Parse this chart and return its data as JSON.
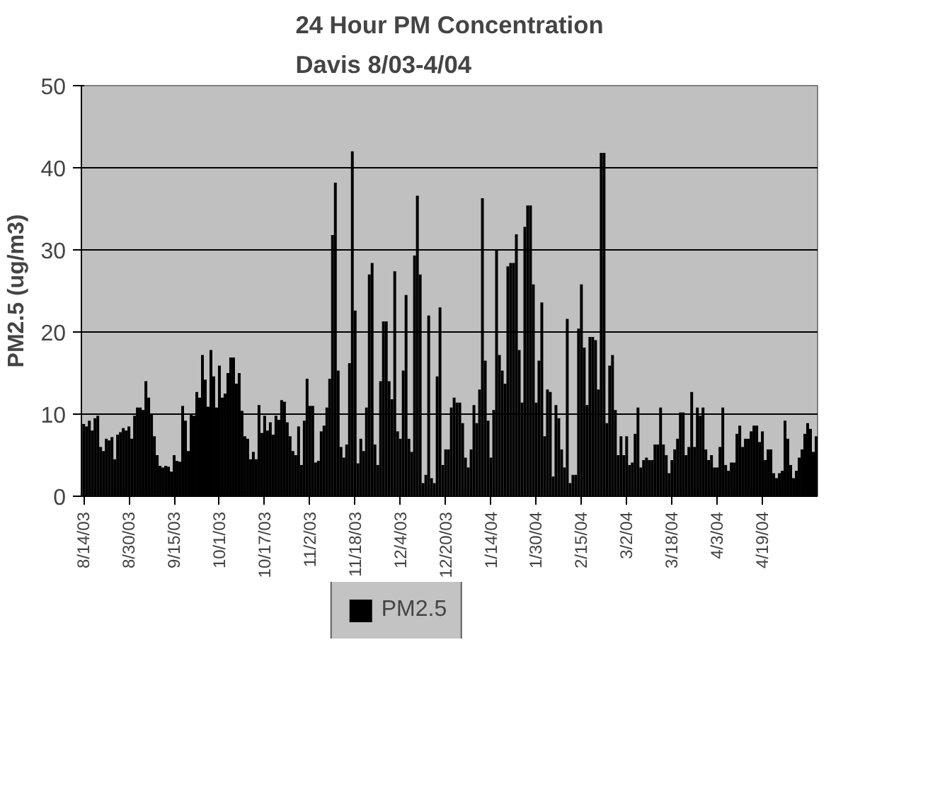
{
  "chart_data": {
    "type": "bar",
    "title": "24 Hour PM Concentration\nDavis 8/03-4/04",
    "ylabel": "PM2.5 (ug/m3)",
    "categories": [
      "8/14/03",
      null,
      null,
      null,
      null,
      null,
      null,
      null,
      null,
      null,
      null,
      null,
      null,
      null,
      null,
      null,
      "8/30/03",
      null,
      null,
      null,
      null,
      null,
      null,
      null,
      null,
      null,
      null,
      null,
      null,
      null,
      null,
      null,
      "9/15/03",
      null,
      null,
      null,
      null,
      null,
      null,
      null,
      null,
      null,
      null,
      null,
      null,
      null,
      null,
      null,
      "10/1/03",
      null,
      null,
      null,
      null,
      null,
      null,
      null,
      null,
      null,
      null,
      null,
      null,
      null,
      null,
      null,
      "10/17/03",
      null,
      null,
      null,
      null,
      null,
      null,
      null,
      null,
      null,
      null,
      null,
      null,
      null,
      null,
      null,
      "11/2/03",
      null,
      null,
      null,
      null,
      null,
      null,
      null,
      null,
      null,
      null,
      null,
      null,
      null,
      null,
      null,
      "11/18/03",
      null,
      null,
      null,
      null,
      null,
      null,
      null,
      null,
      null,
      null,
      null,
      null,
      null,
      null,
      null,
      "12/4/03",
      null,
      null,
      null,
      null,
      null,
      null,
      null,
      null,
      null,
      null,
      null,
      null,
      null,
      null,
      null,
      "12/20/03",
      null,
      null,
      null,
      null,
      null,
      null,
      null,
      null,
      null,
      null,
      null,
      null,
      null,
      null,
      null,
      "1/14/04",
      null,
      null,
      null,
      null,
      null,
      null,
      null,
      null,
      null,
      null,
      null,
      null,
      null,
      null,
      null,
      "1/30/04",
      null,
      null,
      null,
      null,
      null,
      null,
      null,
      null,
      null,
      null,
      null,
      null,
      null,
      null,
      null,
      "2/15/04",
      null,
      null,
      null,
      null,
      null,
      null,
      null,
      null,
      null,
      null,
      null,
      null,
      null,
      null,
      null,
      "3/2/04",
      null,
      null,
      null,
      null,
      null,
      null,
      null,
      null,
      null,
      null,
      null,
      null,
      null,
      null,
      null,
      "3/18/04",
      null,
      null,
      null,
      null,
      null,
      null,
      null,
      null,
      null,
      null,
      null,
      null,
      null,
      null,
      null,
      "4/3/04",
      null,
      null,
      null,
      null,
      null,
      null,
      null,
      null,
      null,
      null,
      null,
      null,
      null,
      null,
      null,
      "4/19/04",
      null,
      null,
      null,
      null,
      null,
      null,
      null,
      null,
      null,
      null,
      null,
      null,
      null,
      null,
      null,
      null,
      null,
      null,
      null
    ],
    "series": [
      {
        "name": "PM2.5",
        "color": "#000000",
        "values": [
          8.8,
          8.5,
          9.2,
          8.0,
          9.5,
          9.8,
          6.0,
          5.5,
          7.0,
          6.8,
          7.2,
          4.5,
          7.5,
          7.8,
          8.3,
          8.0,
          8.5,
          7.0,
          9.8,
          10.8,
          10.8,
          10.5,
          14.0,
          12.0,
          10.0,
          7.3,
          5.0,
          3.7,
          3.5,
          3.7,
          3.6,
          3.0,
          5.0,
          4.3,
          4.2,
          11.0,
          9.2,
          5.5,
          10.0,
          9.8,
          12.7,
          12.0,
          17.2,
          14.2,
          10.9,
          17.8,
          14.6,
          10.8,
          15.9,
          12.0,
          12.5,
          15.0,
          16.9,
          16.9,
          13.7,
          15.0,
          10.4,
          7.3,
          7.0,
          4.5,
          5.4,
          4.5,
          11.1,
          7.7,
          9.8,
          8.0,
          9.0,
          7.5,
          9.8,
          9.3,
          11.7,
          11.5,
          9.0,
          7.3,
          5.5,
          5.0,
          8.5,
          3.8,
          9.2,
          14.3,
          11.0,
          11.0,
          4.1,
          4.3,
          7.9,
          8.6,
          10.8,
          14.3,
          31.8,
          38.2,
          15.3,
          6.0,
          4.7,
          6.3,
          16.2,
          42.0,
          22.6,
          4.0,
          7.0,
          5.5,
          10.8,
          27.0,
          28.4,
          6.3,
          3.8,
          14.0,
          21.3,
          21.3,
          14.0,
          11.8,
          27.4,
          7.9,
          7.0,
          15.3,
          24.5,
          7.0,
          5.4,
          29.3,
          36.6,
          27.0,
          1.6,
          2.6,
          22.0,
          2.2,
          1.6,
          14.6,
          23.0,
          3.8,
          5.7,
          5.7,
          10.8,
          12.0,
          11.4,
          11.4,
          8.9,
          4.7,
          3.5,
          5.7,
          11.1,
          8.9,
          13.0,
          36.3,
          16.5,
          9.2,
          4.7,
          10.5,
          30.0,
          17.2,
          15.3,
          13.7,
          28.0,
          28.4,
          28.4,
          31.9,
          17.8,
          11.4,
          32.8,
          35.4,
          35.4,
          25.8,
          11.4,
          16.5,
          23.6,
          7.3,
          13.0,
          12.7,
          2.4,
          11.1,
          9.5,
          5.7,
          3.5,
          21.6,
          1.6,
          2.6,
          2.6,
          20.4,
          25.8,
          18.1,
          11.1,
          19.4,
          19.4,
          19.0,
          13.0,
          41.8,
          41.8,
          8.9,
          15.9,
          17.2,
          10.5,
          5.0,
          7.3,
          5.0,
          7.3,
          3.8,
          4.1,
          7.6,
          10.8,
          3.5,
          4.4,
          4.7,
          4.4,
          4.4,
          6.3,
          6.3,
          10.8,
          6.3,
          5.0,
          2.8,
          4.4,
          5.7,
          7.0,
          10.2,
          10.2,
          5.0,
          6.0,
          12.7,
          6.0,
          10.8,
          9.8,
          10.8,
          5.7,
          4.4,
          5.0,
          3.5,
          3.5,
          6.0,
          10.8,
          3.8,
          3.1,
          4.1,
          4.1,
          7.6,
          8.6,
          6.0,
          7.0,
          7.0,
          7.9,
          8.6,
          8.6,
          6.6,
          7.9,
          4.4,
          5.7,
          5.7,
          2.8,
          2.2,
          2.8,
          3.1,
          9.2,
          7.0,
          3.8,
          2.2,
          3.1,
          4.7,
          5.7,
          7.6,
          8.9,
          8.2,
          5.4,
          7.3
        ]
      }
    ],
    "ylim": [
      0,
      50
    ],
    "yticks": [
      0,
      10,
      20,
      30,
      40,
      50
    ],
    "grid": "y",
    "legend": "bottom"
  }
}
